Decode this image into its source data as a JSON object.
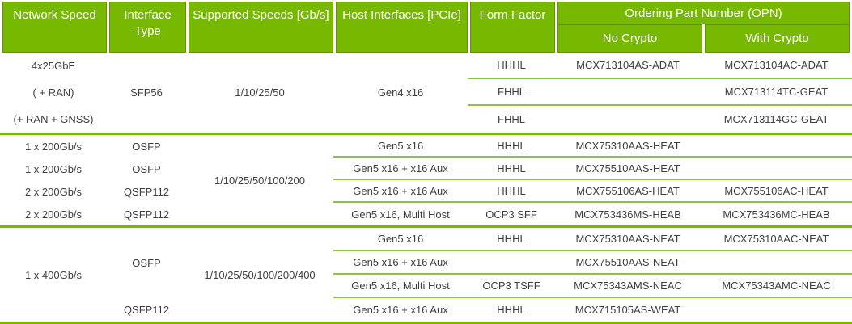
{
  "colors": {
    "header_green": "#76B900",
    "header_border_green": "#619400",
    "row_separator_green": "#8CC63F",
    "text_dark": "#3f3f3f",
    "header_text": "#ffffff"
  },
  "table": {
    "headers": {
      "network_speed": "Network Speed",
      "interface_type": "Interface Type",
      "supported_speeds": "Supported Speeds [Gb/s]",
      "host_interfaces": "Host Interfaces [PCIe]",
      "form_factor": "Form Factor",
      "opn": "Ordering Part Number (OPN)",
      "no_crypto": "No Crypto",
      "with_crypto": "With Crypto"
    }
  },
  "blocks": [
    {
      "network_speed_lines": [
        "4x25GbE",
        "( + RAN)",
        "(+ RAN + GNSS)"
      ],
      "interface_type": "SFP56",
      "supported_speeds": "1/10/25/50",
      "host_interfaces": "Gen4 x16",
      "rows": [
        {
          "form_factor": "HHHL",
          "no_crypto": "MCX713104AS-ADAT",
          "with_crypto": "MCX713104AC-ADAT"
        },
        {
          "form_factor": "FHHL",
          "no_crypto": "",
          "with_crypto": "MCX713114TC-GEAT"
        },
        {
          "form_factor": "FHHL",
          "no_crypto": "",
          "with_crypto": "MCX713114GC-GEAT"
        }
      ]
    },
    {
      "supported_speeds": "1/10/25/50/100/200",
      "rows": [
        {
          "network_speed": "1 x 200Gb/s",
          "interface_type": "OSFP",
          "host_interfaces": "Gen5 x16",
          "form_factor": "HHHL",
          "no_crypto": "MCX75310AAS-HEAT",
          "with_crypto": ""
        },
        {
          "network_speed": "1 x 200Gb/s",
          "interface_type": "OSFP",
          "host_interfaces": "Gen5 x16 + x16 Aux",
          "form_factor": "HHHL",
          "no_crypto": "MCX75510AAS-HEAT",
          "with_crypto": ""
        },
        {
          "network_speed": "2 x 200Gb/s",
          "interface_type": "QSFP112",
          "host_interfaces": "Gen5 x16 + x16 Aux",
          "form_factor": "HHHL",
          "no_crypto": "MCX755106AS-HEAT",
          "with_crypto": "MCX755106AC-HEAT"
        },
        {
          "network_speed": "2 x 200Gb/s",
          "interface_type": "QSFP112",
          "host_interfaces": "Gen5 x16, Multi Host",
          "form_factor": "OCP3 SFF",
          "no_crypto": "MCX753436MS-HEAB",
          "with_crypto": "MCX753436MC-HEAB"
        }
      ]
    },
    {
      "network_speed": "1 x 400Gb/s",
      "interface_type_osfp": "OSFP",
      "interface_type_qsfp": "QSFP112",
      "supported_speeds": "1/10/25/50/100/200/400",
      "rows": [
        {
          "host_interfaces": "Gen5 x16",
          "form_factor": "HHHL",
          "no_crypto": "MCX75310AAS-NEAT",
          "with_crypto": "MCX75310AAC-NEAT"
        },
        {
          "host_interfaces": "Gen5 x16 + x16 Aux",
          "form_factor": "",
          "no_crypto": "MCX75510AAS-NEAT",
          "with_crypto": ""
        },
        {
          "host_interfaces": "Gen5 x16, Multi Host",
          "form_factor": "OCP3 TSFF",
          "no_crypto": "MCX75343AMS-NEAC",
          "with_crypto": "MCX75343AMC-NEAC"
        },
        {
          "host_interfaces": "Gen5 x16 + x16 Aux",
          "form_factor": "HHHL",
          "no_crypto": "MCX715105AS-WEAT",
          "with_crypto": ""
        }
      ]
    }
  ]
}
